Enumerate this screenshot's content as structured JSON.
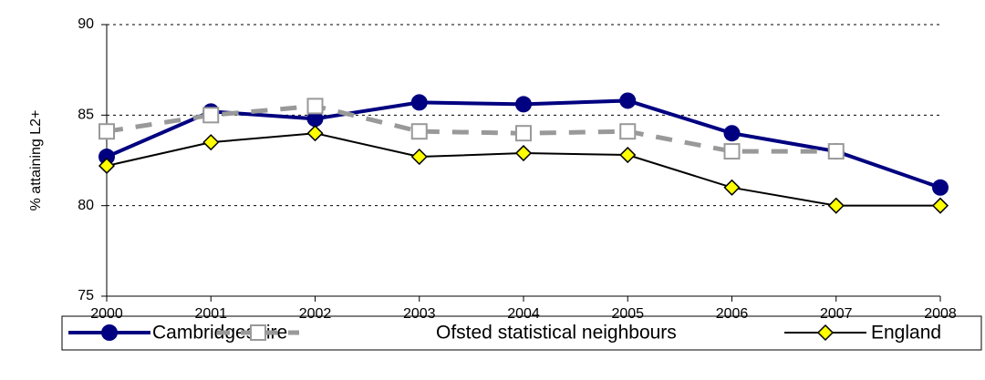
{
  "chart_data": {
    "type": "line",
    "ylabel": "% attaining L2+",
    "categories": [
      "2000",
      "2001",
      "2002",
      "2003",
      "2004",
      "2005",
      "2006",
      "2007",
      "2008"
    ],
    "series": [
      {
        "name": "Cambridgeshire",
        "color": "#000080",
        "values": [
          82.7,
          85.2,
          84.8,
          85.7,
          85.6,
          85.8,
          84.0,
          83.0,
          81.0
        ]
      },
      {
        "name": "Ofsted statistical neighbours",
        "color": "#999999",
        "values": [
          84.1,
          85.0,
          85.5,
          84.1,
          84.0,
          84.1,
          83.0,
          83.0,
          null
        ]
      },
      {
        "name": "England",
        "color": "#000000",
        "values": [
          82.2,
          83.5,
          84.0,
          82.7,
          82.9,
          82.8,
          81.0,
          80.0,
          80.0
        ]
      }
    ],
    "ylim": [
      75,
      90
    ],
    "yticks": [
      75,
      80,
      85,
      90
    ],
    "grid": true,
    "legend": "bottom"
  }
}
